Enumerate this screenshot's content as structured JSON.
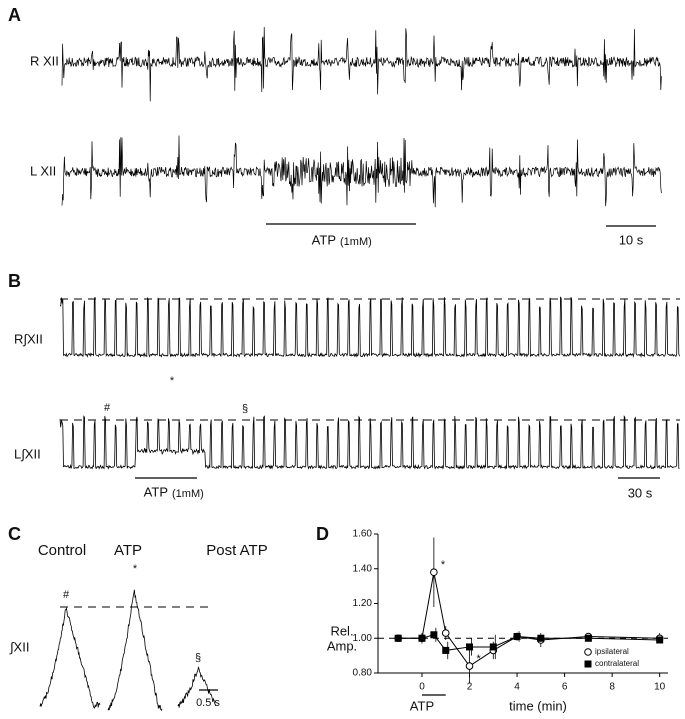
{
  "panels": {
    "a": {
      "label": "A",
      "traces": [
        "R XII",
        "L XII"
      ],
      "stimulus": "ATP",
      "stimulus_dose": "(1mM)",
      "scale_bar": "10 s"
    },
    "b": {
      "label": "B",
      "traces": [
        "R∫XII",
        "L∫XII"
      ],
      "marks": [
        "#",
        "*",
        "§"
      ],
      "stimulus": "ATP",
      "stimulus_dose": "(1mM)",
      "scale_bar": "30 s"
    },
    "c": {
      "label": "C",
      "conditions": [
        "Control",
        "ATP",
        "Post ATP"
      ],
      "marks": [
        "#",
        "*",
        "§"
      ],
      "trace": "∫XII",
      "scale_bar": "0.5 s"
    },
    "d": {
      "label": "D"
    }
  },
  "chart_data": {
    "type": "line",
    "ylabel": [
      "Rel.",
      "Amp."
    ],
    "xlabel": "time (min)",
    "x": [
      -1,
      0,
      0.5,
      1,
      2,
      3,
      4,
      5,
      7,
      10
    ],
    "xlim": [
      -1.85,
      10.35
    ],
    "xticks": [
      0,
      2,
      4,
      6,
      8,
      10
    ],
    "ylim": [
      0.8,
      1.6
    ],
    "yticks": [
      {
        "value": 0.8,
        "label": "0.80"
      },
      {
        "value": 1.0,
        "label": "1.00"
      },
      {
        "value": 1.2,
        "label": "1.20"
      },
      {
        "value": 1.4,
        "label": "1.40"
      },
      {
        "value": 1.6,
        "label": "1.60"
      }
    ],
    "reference_line": 1.0,
    "span": {
      "label": "ATP",
      "x": [
        0,
        1
      ]
    },
    "legend": "lower right",
    "series": [
      {
        "name": "ipsilateral",
        "marker": "circle",
        "color": "#ffffff",
        "values": [
          1.0,
          1.0,
          1.38,
          1.03,
          0.84,
          0.93,
          1.01,
          0.99,
          1.01,
          1.0
        ],
        "errors": [
          0.02,
          0.03,
          0.2,
          0.04,
          0.1,
          0.05,
          0.02,
          0.04,
          0.02,
          0.03
        ],
        "point_labels": [
          null,
          null,
          "*",
          null,
          "*",
          null,
          null,
          null,
          null,
          null
        ]
      },
      {
        "name": "contralateral",
        "marker": "square",
        "color": "#000000",
        "values": [
          1.0,
          1.0,
          1.02,
          0.93,
          0.95,
          0.95,
          1.01,
          1.0,
          1.0,
          0.99
        ],
        "errors": [
          0.02,
          0.02,
          0.04,
          0.05,
          0.05,
          0.07,
          0.03,
          0.02,
          0.02,
          0.02
        ]
      }
    ]
  }
}
